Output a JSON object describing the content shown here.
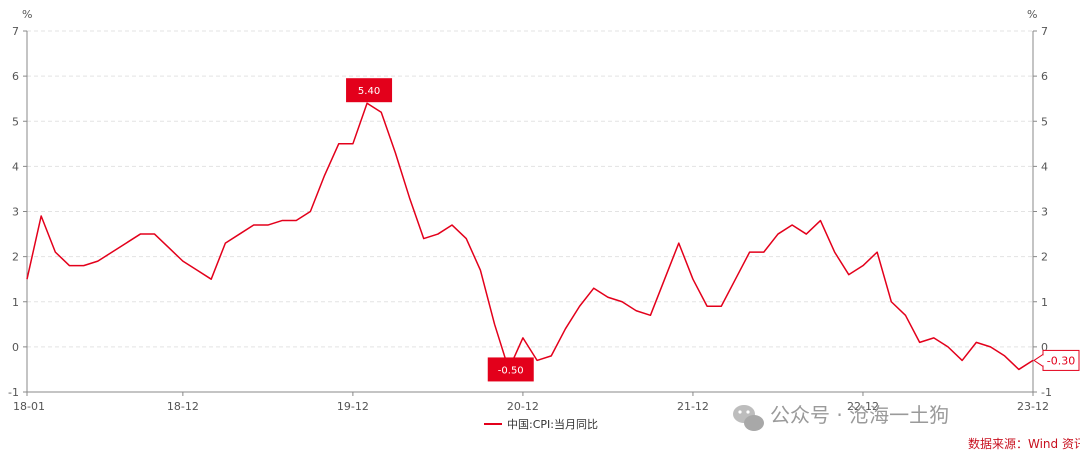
{
  "chart_data": {
    "type": "line",
    "unit_left": "%",
    "unit_right": "%",
    "ylim": [
      -1,
      7
    ],
    "y_ticks": [
      -1,
      0,
      1,
      2,
      3,
      4,
      5,
      6,
      7
    ],
    "x_tick_labels": [
      "18-01",
      "18-12",
      "19-12",
      "20-12",
      "21-12",
      "22-12",
      "23-12"
    ],
    "grid": "horizontal dashed",
    "legend_position": "bottom-center",
    "series": [
      {
        "name": "中国:CPI:当月同比",
        "color": "#e3001b",
        "x": [
          "18-01",
          "18-02",
          "18-03",
          "18-04",
          "18-05",
          "18-06",
          "18-07",
          "18-08",
          "18-09",
          "18-10",
          "18-11",
          "18-12",
          "19-01",
          "19-02",
          "19-03",
          "19-04",
          "19-05",
          "19-06",
          "19-07",
          "19-08",
          "19-09",
          "19-10",
          "19-11",
          "19-12",
          "20-01",
          "20-02",
          "20-03",
          "20-04",
          "20-05",
          "20-06",
          "20-07",
          "20-08",
          "20-09",
          "20-10",
          "20-11",
          "20-12",
          "21-01",
          "21-02",
          "21-03",
          "21-04",
          "21-05",
          "21-06",
          "21-07",
          "21-08",
          "21-09",
          "21-10",
          "21-11",
          "21-12",
          "22-01",
          "22-02",
          "22-03",
          "22-04",
          "22-05",
          "22-06",
          "22-07",
          "22-08",
          "22-09",
          "22-10",
          "22-11",
          "22-12",
          "23-01",
          "23-02",
          "23-03",
          "23-04",
          "23-05",
          "23-06",
          "23-07",
          "23-08",
          "23-09",
          "23-10",
          "23-11",
          "23-12"
        ],
        "values": [
          1.5,
          2.9,
          2.1,
          1.8,
          1.8,
          1.9,
          2.1,
          2.3,
          2.5,
          2.5,
          2.2,
          1.9,
          1.7,
          1.5,
          2.3,
          2.5,
          2.7,
          2.7,
          2.8,
          2.8,
          3.0,
          3.8,
          4.5,
          4.5,
          5.4,
          5.2,
          4.3,
          3.3,
          2.4,
          2.5,
          2.7,
          2.4,
          1.7,
          0.5,
          -0.5,
          0.2,
          -0.3,
          -0.2,
          0.4,
          0.9,
          1.3,
          1.1,
          1.0,
          0.8,
          0.7,
          1.5,
          2.3,
          1.5,
          0.9,
          0.9,
          1.5,
          2.1,
          2.1,
          2.5,
          2.7,
          2.5,
          2.8,
          2.1,
          1.6,
          1.8,
          2.1,
          1.0,
          0.7,
          0.1,
          0.2,
          0.0,
          -0.3,
          0.1,
          0.0,
          -0.2,
          -0.5,
          -0.3
        ]
      }
    ],
    "annotations": [
      {
        "label": "5.40",
        "x": "20-01",
        "value": 5.4
      },
      {
        "label": "-0.50",
        "x": "20-11",
        "value": -0.5
      },
      {
        "label": "-0.30",
        "x": "23-12",
        "value": -0.3
      }
    ]
  },
  "watermark": {
    "text": "公众号 · 沧海一土狗",
    "icon": "wechat-icon"
  },
  "source_text": "数据来源：Wind 资讯汇"
}
